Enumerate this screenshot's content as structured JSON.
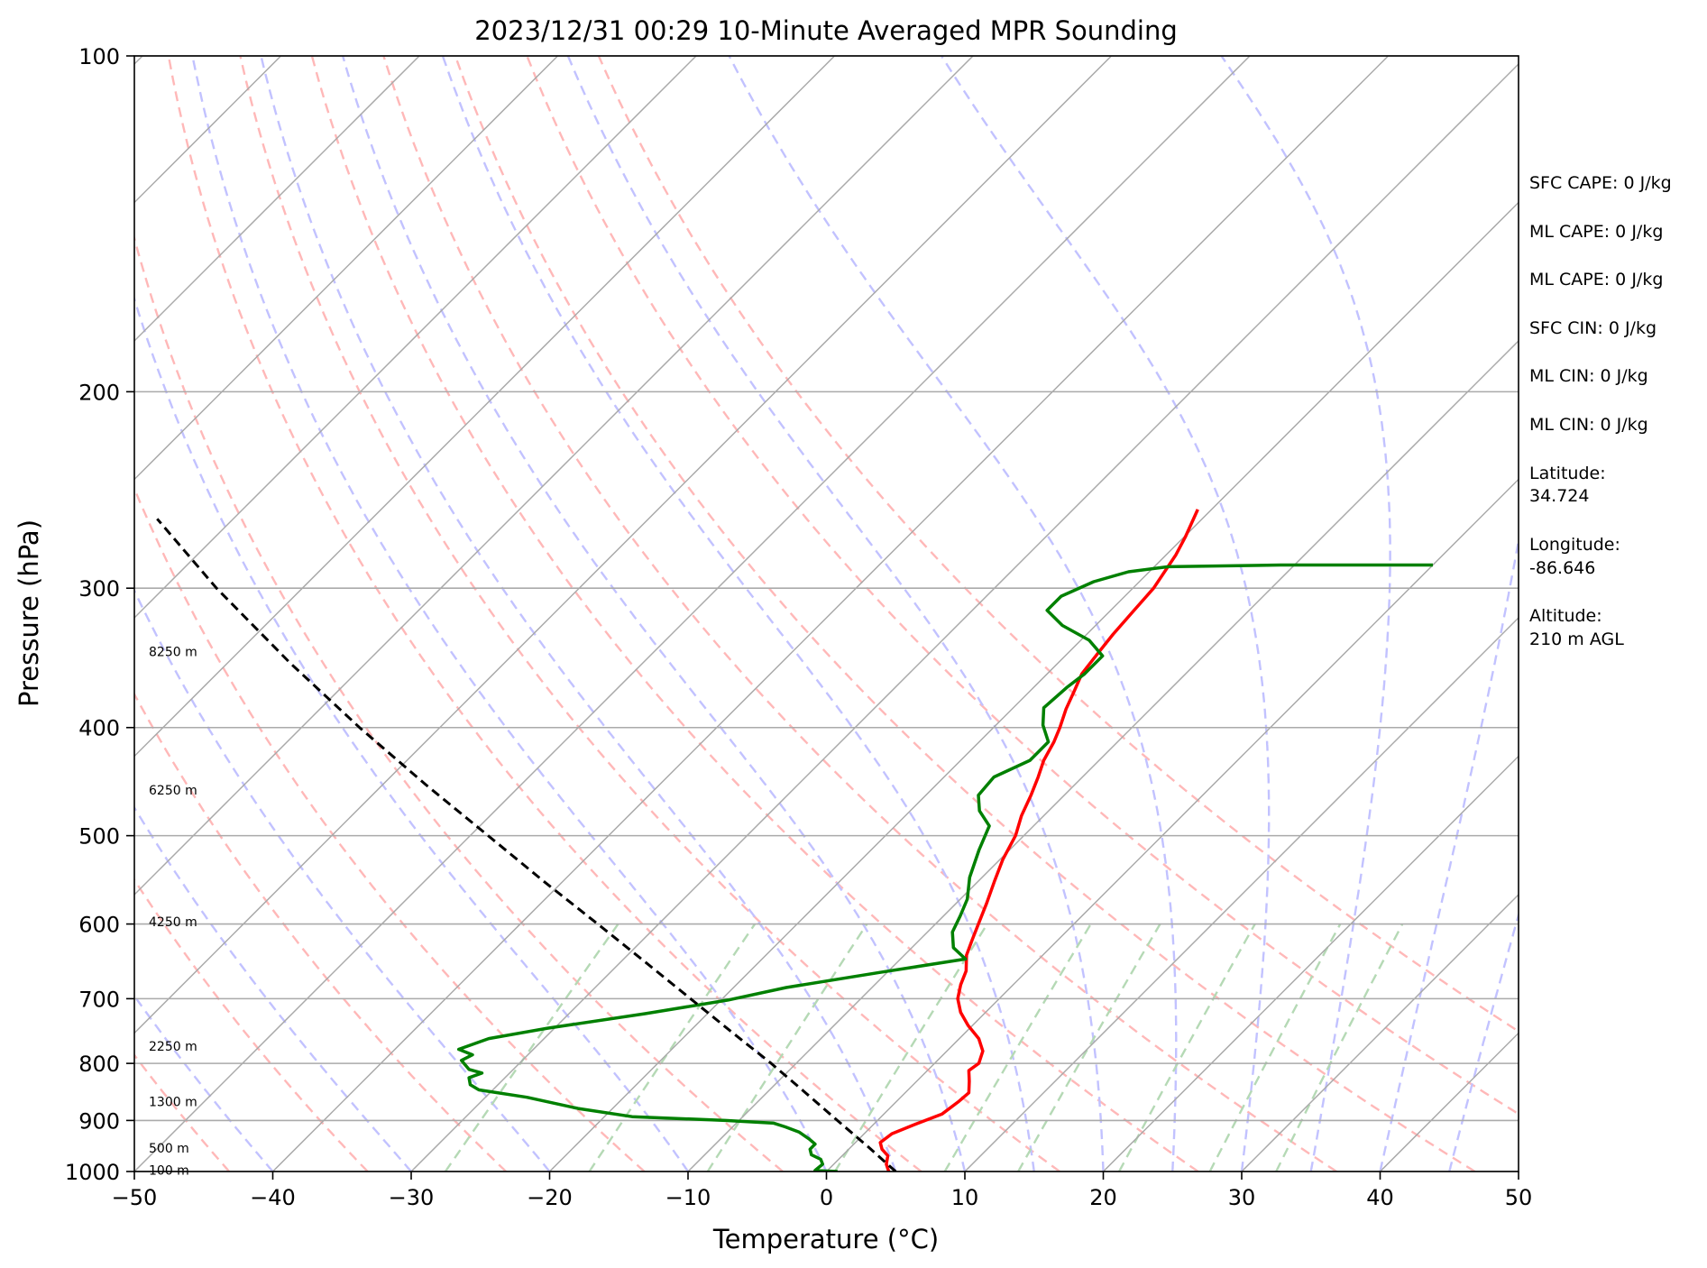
{
  "chart_data": {
    "type": "line",
    "title": "2023/12/31 00:29 10-Minute Averaged MPR Sounding",
    "xlabel": "Temperature (°C)",
    "ylabel": "Pressure (hPa)",
    "xlim": [
      -50,
      50
    ],
    "ylim": [
      1000,
      100
    ],
    "y_scale": "log",
    "skew": "45 degrees",
    "x_ticks": [
      -50,
      -40,
      -30,
      -20,
      -10,
      0,
      10,
      20,
      30,
      40,
      50
    ],
    "x_tick_labels": [
      "−50",
      "−40",
      "−30",
      "−20",
      "−10",
      "0",
      "10",
      "20",
      "30",
      "40",
      "50"
    ],
    "y_ticks": [
      100,
      200,
      300,
      400,
      500,
      600,
      700,
      800,
      900,
      1000
    ],
    "y_tick_labels": [
      "100",
      "200",
      "300",
      "400",
      "500",
      "600",
      "700",
      "800",
      "900",
      "1000"
    ],
    "grid": true,
    "background_lines": {
      "isotherms": {
        "color": "#a9a9a9",
        "style": "solid",
        "values": [
          -160,
          -150,
          -140,
          -130,
          -120,
          -110,
          -100,
          -90,
          -80,
          -70,
          -60,
          -50,
          -40,
          -30,
          -20,
          -10,
          0,
          10,
          20,
          30,
          40,
          50
        ]
      },
      "dry_adiabats": {
        "color": "#ffb8b8",
        "style": "dashed",
        "theta_K": [
          220,
          230,
          240,
          250,
          260,
          270,
          280,
          290,
          300,
          310,
          320,
          330,
          340
        ]
      },
      "moist_adiabats": {
        "color": "#c2c2ff",
        "style": "dashed",
        "start_temps_at_1000": [
          -40,
          -30,
          -20,
          -10,
          0,
          5,
          10,
          15,
          20,
          25,
          30,
          35,
          40,
          45
        ]
      },
      "mixing_ratio_lines": {
        "color": "#b5d9b5",
        "style": "dashed",
        "g_per_kg": [
          0.4,
          1,
          2,
          4,
          7,
          10,
          16,
          24,
          32
        ],
        "top_pressure": 600
      }
    },
    "series": [
      {
        "color": "#ff0000",
        "points": [
          [
            1000,
            4.5
          ],
          [
            985,
            3.8
          ],
          [
            968,
            3.3
          ],
          [
            955,
            2.4
          ],
          [
            942,
            1.8
          ],
          [
            925,
            2.0
          ],
          [
            907,
            3.0
          ],
          [
            888,
            4.2
          ],
          [
            865,
            4.5
          ],
          [
            850,
            4.6
          ],
          [
            830,
            3.8
          ],
          [
            812,
            3.0
          ],
          [
            800,
            3.2
          ],
          [
            780,
            2.6
          ],
          [
            760,
            1.4
          ],
          [
            740,
            -0.3
          ],
          [
            720,
            -1.8
          ],
          [
            700,
            -3.0
          ],
          [
            680,
            -3.8
          ],
          [
            661,
            -4.4
          ],
          [
            640,
            -5.5
          ],
          [
            620,
            -6.2
          ],
          [
            600,
            -6.9
          ],
          [
            575,
            -7.8
          ],
          [
            550,
            -8.8
          ],
          [
            525,
            -9.8
          ],
          [
            500,
            -10.6
          ],
          [
            480,
            -11.6
          ],
          [
            460,
            -12.4
          ],
          [
            443,
            -13.2
          ],
          [
            428,
            -14.0
          ],
          [
            412,
            -14.6
          ],
          [
            400,
            -15.2
          ],
          [
            385,
            -16.1
          ],
          [
            371,
            -16.8
          ],
          [
            358,
            -17.5
          ],
          [
            344,
            -17.8
          ],
          [
            330,
            -18.1
          ],
          [
            315,
            -18.3
          ],
          [
            300,
            -18.5
          ],
          [
            280,
            -19.3
          ],
          [
            270,
            -19.9
          ],
          [
            255,
            -21.0
          ]
        ]
      },
      {
        "color": "#008000",
        "points": [
          [
            1000,
            0.8
          ],
          [
            998,
            -0.9
          ],
          [
            985,
            -0.8
          ],
          [
            975,
            -1.3
          ],
          [
            966,
            -2.3
          ],
          [
            955,
            -2.8
          ],
          [
            945,
            -2.8
          ],
          [
            935,
            -3.6
          ],
          [
            922,
            -4.8
          ],
          [
            912,
            -6.2
          ],
          [
            905,
            -7.3
          ],
          [
            900,
            -11.0
          ],
          [
            893,
            -18.0
          ],
          [
            878,
            -22.5
          ],
          [
            858,
            -27.0
          ],
          [
            845,
            -31.0
          ],
          [
            836,
            -32.0
          ],
          [
            824,
            -32.6
          ],
          [
            816,
            -32.0
          ],
          [
            810,
            -33.2
          ],
          [
            795,
            -34.4
          ],
          [
            786,
            -34.0
          ],
          [
            777,
            -35.4
          ],
          [
            760,
            -34.0
          ],
          [
            744,
            -30.5
          ],
          [
            722,
            -24.5
          ],
          [
            702,
            -19.5
          ],
          [
            684,
            -16.2
          ],
          [
            663,
            -10.5
          ],
          [
            645,
            -5.3
          ],
          [
            630,
            -7.0
          ],
          [
            610,
            -8.2
          ],
          [
            590,
            -8.8
          ],
          [
            570,
            -9.5
          ],
          [
            545,
            -10.9
          ],
          [
            515,
            -12.2
          ],
          [
            490,
            -13.2
          ],
          [
            475,
            -15.0
          ],
          [
            460,
            -16.2
          ],
          [
            443,
            -16.4
          ],
          [
            428,
            -15.0
          ],
          [
            412,
            -15.0
          ],
          [
            398,
            -16.6
          ],
          [
            384,
            -17.8
          ],
          [
            368,
            -17.6
          ],
          [
            358,
            -17.3
          ],
          [
            345,
            -17.3
          ],
          [
            334,
            -19.4
          ],
          [
            324,
            -22.4
          ],
          [
            314,
            -24.6
          ],
          [
            305,
            -24.6
          ],
          [
            296,
            -23.3
          ],
          [
            290,
            -21.5
          ],
          [
            287,
            -19.0
          ],
          [
            286,
            -11.0
          ],
          [
            286,
            0.0
          ]
        ]
      },
      {
        "color": "#000000",
        "style": "dashed",
        "points": [
          [
            1000,
            5.0
          ],
          [
            950,
            1.2
          ],
          [
            900,
            -2.9
          ],
          [
            850,
            -7.2
          ],
          [
            800,
            -11.8
          ],
          [
            750,
            -16.9
          ],
          [
            700,
            -22.3
          ],
          [
            650,
            -28.1
          ],
          [
            600,
            -34.4
          ],
          [
            550,
            -41.3
          ],
          [
            500,
            -48.7
          ],
          [
            450,
            -56.9
          ],
          [
            400,
            -65.8
          ],
          [
            350,
            -75.5
          ],
          [
            300,
            -86.2
          ],
          [
            260,
            -95.5
          ]
        ]
      }
    ],
    "height_labels": [
      {
        "text": "100 m",
        "pressure": 997
      },
      {
        "text": "500 m",
        "pressure": 953
      },
      {
        "text": "1300 m",
        "pressure": 866
      },
      {
        "text": "2250 m",
        "pressure": 772
      },
      {
        "text": "4250 m",
        "pressure": 597
      },
      {
        "text": "6250 m",
        "pressure": 455
      },
      {
        "text": "8250 m",
        "pressure": 342
      }
    ]
  },
  "info_panel": {
    "sfc_cape": "SFC CAPE: 0 J/kg",
    "ml_cape_1": "ML CAPE: 0 J/kg",
    "ml_cape_2": "ML CAPE: 0 J/kg",
    "sfc_cin": "SFC CIN: 0 J/kg",
    "ml_cin_1": "ML CIN: 0 J/kg",
    "ml_cin_2": "ML CIN: 0 J/kg",
    "latitude_label": "Latitude:",
    "latitude_value": "34.724",
    "longitude_label": "Longitude:",
    "longitude_value": "-86.646",
    "altitude_label": "Altitude:",
    "altitude_value": "210 m AGL"
  }
}
